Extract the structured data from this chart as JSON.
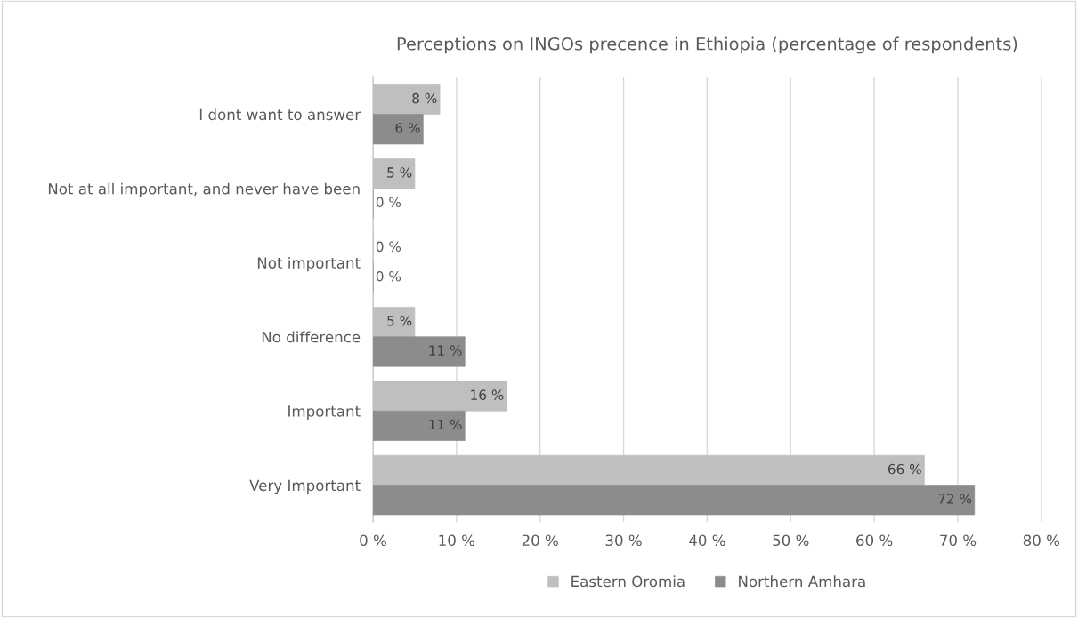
{
  "chart_data": {
    "type": "bar",
    "orientation": "horizontal",
    "title": "Perceptions on INGOs precence in Ethiopia (percentage of respondents)",
    "categories": [
      "I dont want to answer",
      "Not at all important, and never have been",
      "Not important",
      "No difference",
      "Important",
      "Very Important"
    ],
    "series": [
      {
        "name": "Eastern Oromia",
        "color": "#bfbfbf",
        "values": [
          8,
          5,
          0,
          5,
          16,
          66
        ],
        "value_labels": [
          "8 %",
          "5 %",
          "0 %",
          "5 %",
          "16 %",
          "66 %"
        ]
      },
      {
        "name": "Northern Amhara",
        "color": "#8c8c8c",
        "values": [
          6,
          0,
          0,
          11,
          11,
          72
        ],
        "value_labels": [
          "6 %",
          "0 %",
          "0 %",
          "11 %",
          "11 %",
          "72 %"
        ]
      }
    ],
    "xlim": [
      0,
      80
    ],
    "xticks": [
      {
        "value": 0,
        "label": "0 %"
      },
      {
        "value": 10,
        "label": "10 %"
      },
      {
        "value": 20,
        "label": "20 %"
      },
      {
        "value": 30,
        "label": "30 %"
      },
      {
        "value": 40,
        "label": "40 %"
      },
      {
        "value": 50,
        "label": "50 %"
      },
      {
        "value": 60,
        "label": "60 %"
      },
      {
        "value": 70,
        "label": "70 %"
      },
      {
        "value": 80,
        "label": "80 %"
      }
    ],
    "grid": "x",
    "legend": "bottom"
  }
}
